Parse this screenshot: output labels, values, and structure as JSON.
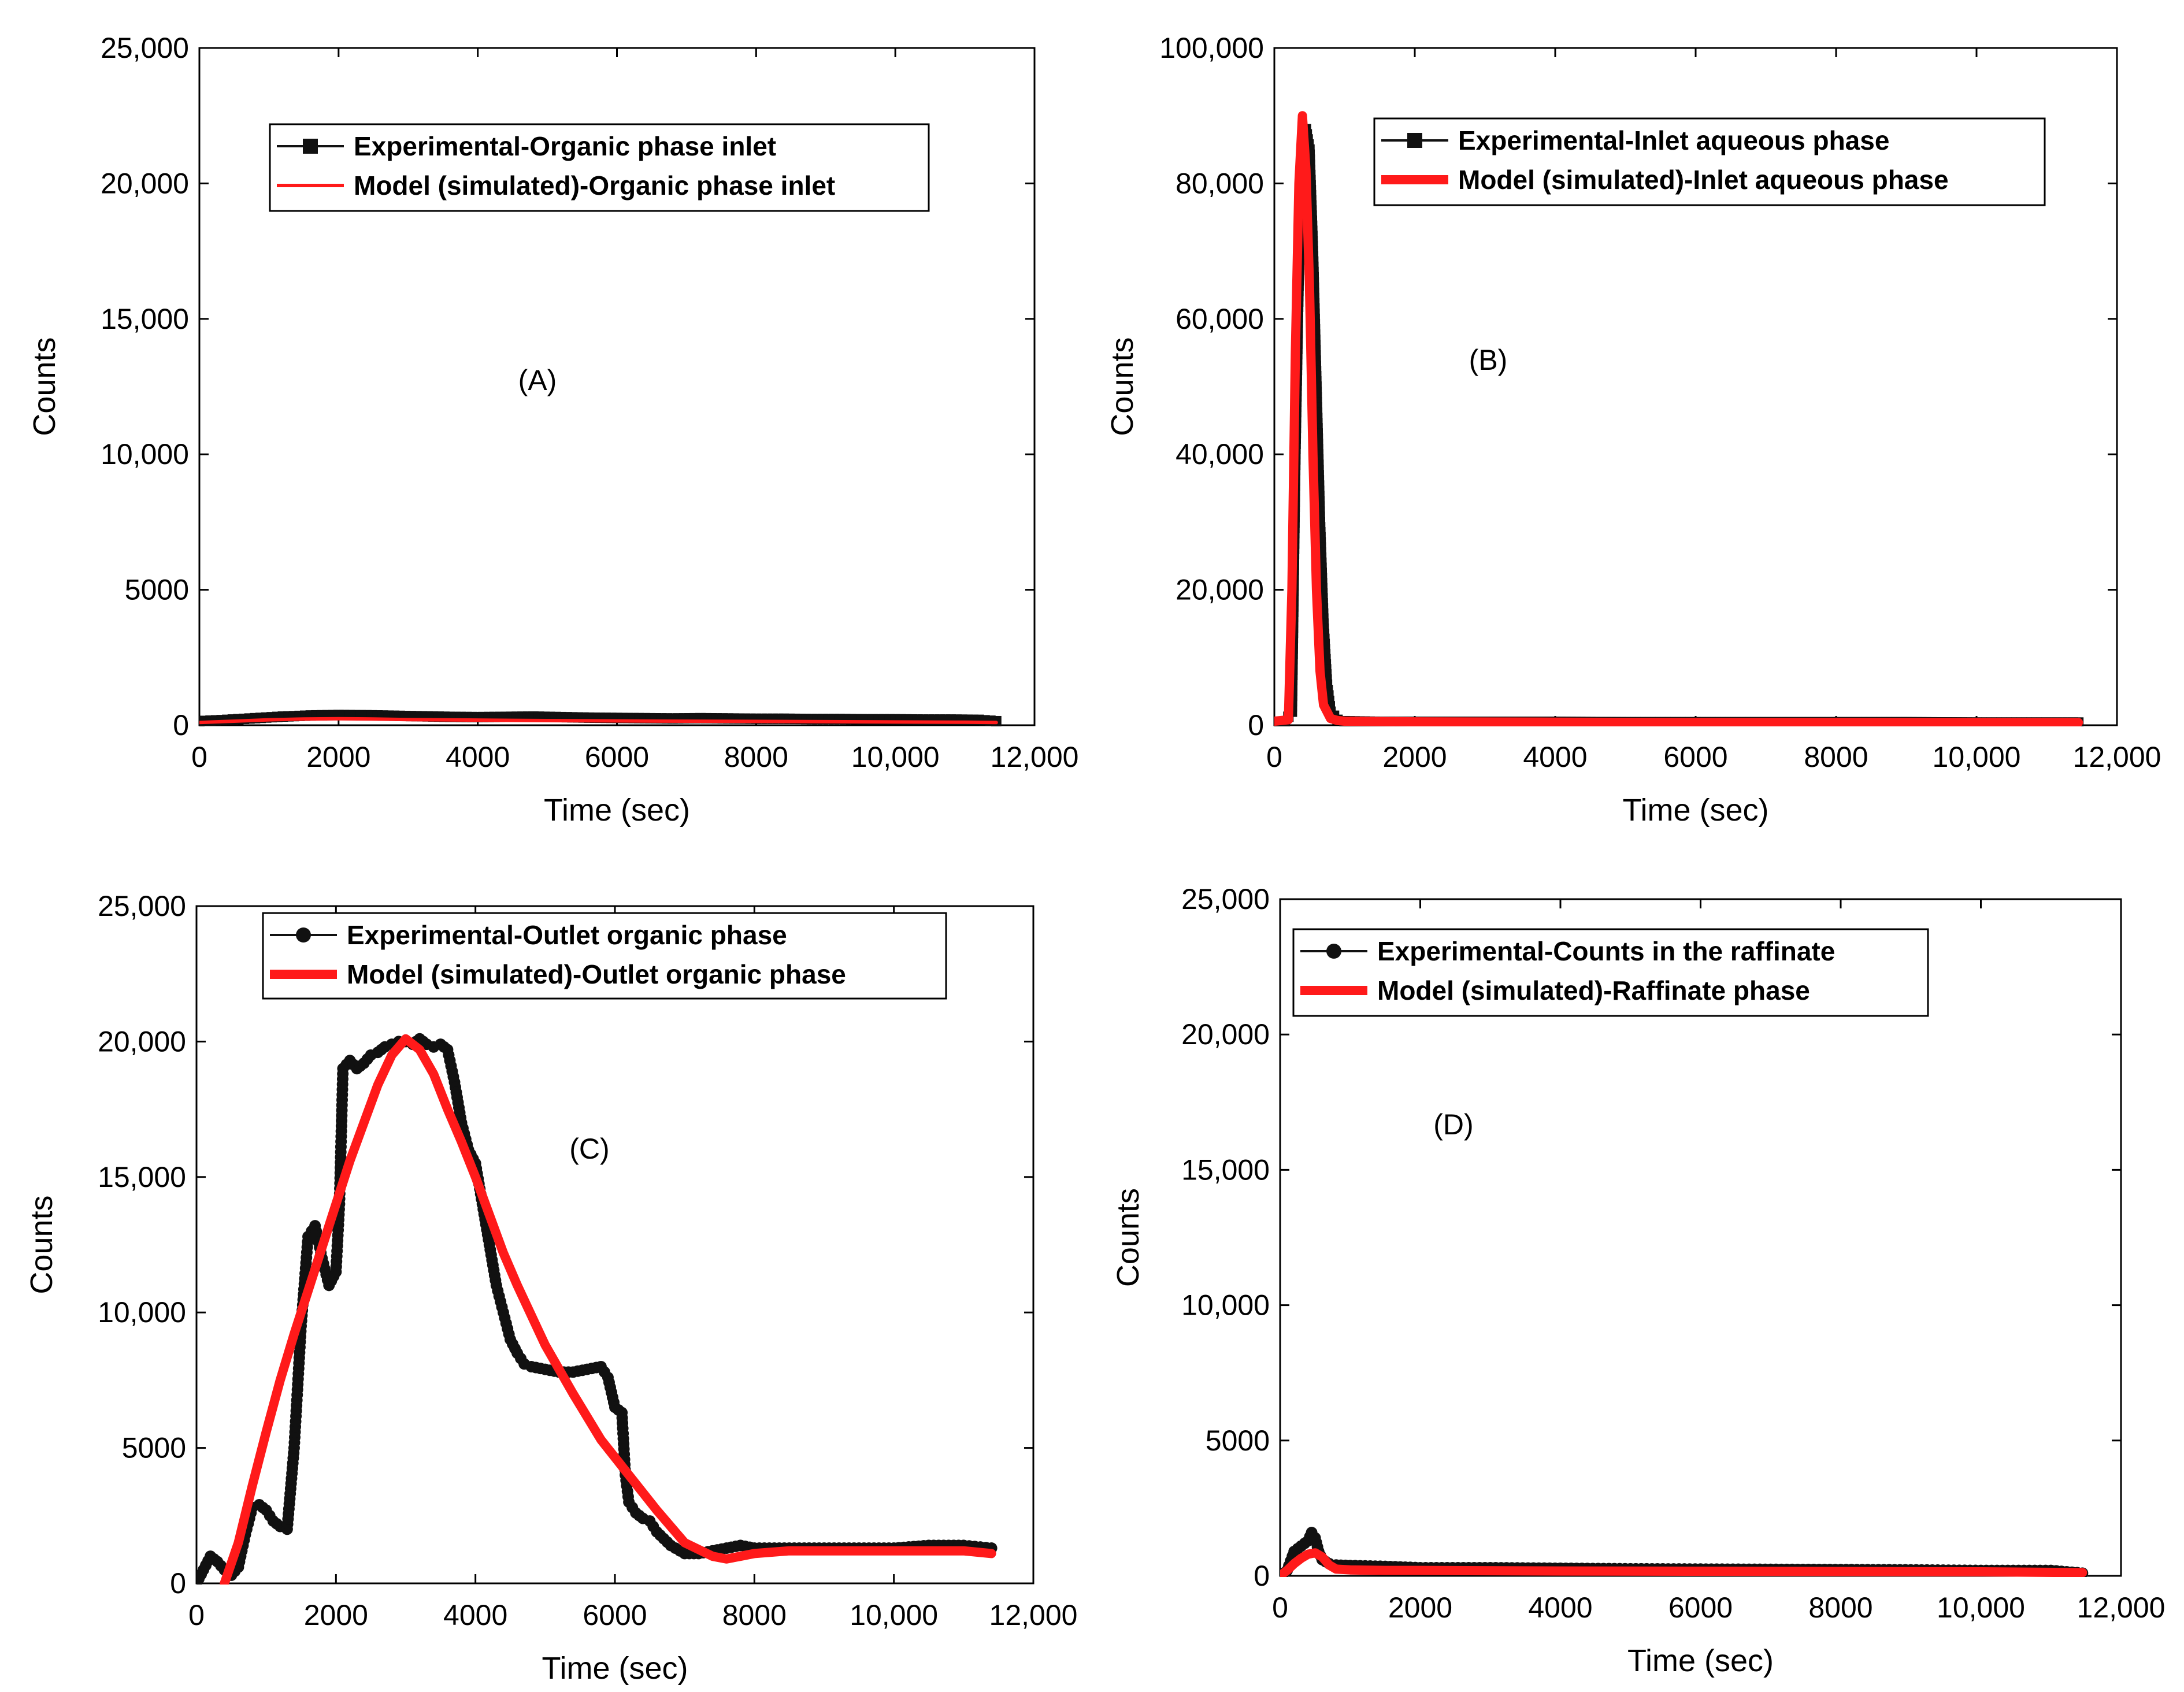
{
  "colors": {
    "experimental": "#111111",
    "model": "#ff1a1a",
    "axis": "#000000",
    "background": "#ffffff"
  },
  "chart_data": [
    {
      "id": "A",
      "type": "line",
      "panel_label": "(A)",
      "xlabel": "Time (sec)",
      "ylabel": "Counts",
      "xlim": [
        0,
        12000
      ],
      "ylim": [
        0,
        25000
      ],
      "x_ticks": [
        "0",
        "2000",
        "4000",
        "6000",
        "8000",
        "10,000",
        "12,000"
      ],
      "y_ticks": [
        "0",
        "5000",
        "10,000",
        "15,000",
        "20,000",
        "25,000"
      ],
      "legend_position": "top-center",
      "series": [
        {
          "name": "Experimental-Organic phase inlet",
          "kind": "experimental",
          "marker": "square",
          "x": [
            0,
            400,
            800,
            1200,
            1600,
            2000,
            2400,
            2800,
            3200,
            3600,
            4000,
            4400,
            4800,
            5200,
            5600,
            6000,
            6400,
            6800,
            7200,
            7600,
            8000,
            8400,
            8800,
            9200,
            9600,
            10000,
            10400,
            10800,
            11200,
            11450
          ],
          "y": [
            150,
            200,
            260,
            320,
            360,
            380,
            370,
            350,
            330,
            310,
            300,
            310,
            320,
            300,
            280,
            270,
            260,
            250,
            260,
            250,
            240,
            240,
            230,
            230,
            220,
            220,
            210,
            210,
            200,
            150
          ]
        },
        {
          "name": "Model (simulated)-Organic phase inlet",
          "kind": "model",
          "line_weight": "thin",
          "x": [
            0,
            500,
            1000,
            1500,
            2000,
            2500,
            3000,
            4000,
            5000,
            6000,
            7000,
            8000,
            9000,
            10000,
            11000,
            11450
          ],
          "y": [
            100,
            150,
            200,
            230,
            240,
            230,
            210,
            190,
            170,
            160,
            150,
            140,
            130,
            120,
            110,
            100
          ]
        }
      ]
    },
    {
      "id": "B",
      "type": "line",
      "panel_label": "(B)",
      "xlabel": "Time (sec)",
      "ylabel": "Counts",
      "xlim": [
        0,
        12000
      ],
      "ylim": [
        0,
        100000
      ],
      "x_ticks": [
        "0",
        "2000",
        "4000",
        "6000",
        "8000",
        "10,000",
        "12,000"
      ],
      "y_ticks": [
        "0",
        "20,000",
        "40,000",
        "60,000",
        "80,000",
        "100,000"
      ],
      "legend_position": "top-right",
      "series": [
        {
          "name": "Experimental-Inlet aqueous phase",
          "kind": "experimental",
          "marker": "square",
          "x": [
            0,
            150,
            250,
            300,
            350,
            400,
            450,
            500,
            550,
            600,
            650,
            700,
            750,
            800,
            900,
            1000,
            1500,
            2000,
            3000,
            4000,
            5000,
            6000,
            7000,
            8000,
            9000,
            10000,
            11000,
            11450
          ],
          "y": [
            500,
            500,
            2000,
            40000,
            68000,
            83000,
            88000,
            85000,
            70000,
            50000,
            30000,
            15000,
            6000,
            2000,
            800,
            600,
            500,
            500,
            500,
            500,
            450,
            450,
            450,
            450,
            450,
            400,
            400,
            400
          ]
        },
        {
          "name": "Model (simulated)-Inlet aqueous phase",
          "kind": "model",
          "line_weight": "thick",
          "x": [
            0,
            200,
            250,
            300,
            350,
            400,
            450,
            500,
            550,
            600,
            650,
            700,
            800,
            900,
            1000,
            1500,
            2000,
            4000,
            6000,
            8000,
            10000,
            11450
          ],
          "y": [
            600,
            800,
            20000,
            55000,
            80000,
            90000,
            82000,
            65000,
            40000,
            20000,
            8000,
            3000,
            1000,
            700,
            600,
            550,
            500,
            450,
            400,
            400,
            400,
            400
          ]
        }
      ]
    },
    {
      "id": "C",
      "type": "line",
      "panel_label": "(C)",
      "xlabel": "Time (sec)",
      "ylabel": "Counts",
      "xlim": [
        0,
        12000
      ],
      "ylim": [
        0,
        25000
      ],
      "x_ticks": [
        "0",
        "2000",
        "4000",
        "6000",
        "8000",
        "10,000",
        "12,000"
      ],
      "y_ticks": [
        "0",
        "5000",
        "10,000",
        "15,000",
        "20,000",
        "25,000"
      ],
      "legend_position": "top-center",
      "series": [
        {
          "name": "Experimental-Outlet organic phase",
          "kind": "experimental",
          "marker": "circle",
          "x": [
            0,
            200,
            300,
            400,
            500,
            600,
            700,
            800,
            900,
            1000,
            1100,
            1200,
            1300,
            1400,
            1500,
            1600,
            1700,
            1800,
            1900,
            2000,
            2050,
            2100,
            2200,
            2300,
            2400,
            2500,
            2600,
            2700,
            2800,
            2900,
            3000,
            3100,
            3200,
            3300,
            3400,
            3500,
            3600,
            3700,
            3800,
            3900,
            4000,
            4100,
            4200,
            4300,
            4400,
            4500,
            4600,
            4700,
            4800,
            5000,
            5200,
            5400,
            5600,
            5800,
            5900,
            6000,
            6100,
            6150,
            6200,
            6300,
            6400,
            6500,
            6600,
            6800,
            7000,
            7200,
            7400,
            7600,
            7800,
            8000,
            8500,
            9000,
            9500,
            10000,
            10500,
            11000,
            11400
          ],
          "y": [
            0,
            1000,
            800,
            500,
            300,
            600,
            1800,
            2800,
            2900,
            2700,
            2300,
            2100,
            2000,
            5000,
            9500,
            12800,
            13200,
            12000,
            11000,
            11500,
            14000,
            19000,
            19300,
            19000,
            19200,
            19500,
            19600,
            19800,
            19900,
            20000,
            20000,
            19900,
            20100,
            19900,
            19800,
            19900,
            19700,
            18500,
            17000,
            16000,
            15500,
            14000,
            12500,
            11000,
            10000,
            9000,
            8500,
            8100,
            8000,
            7900,
            7800,
            7800,
            7900,
            8000,
            7600,
            6500,
            6300,
            4000,
            3000,
            2600,
            2400,
            2300,
            1900,
            1400,
            1100,
            1100,
            1200,
            1300,
            1400,
            1300,
            1300,
            1300,
            1300,
            1300,
            1400,
            1400,
            1300
          ]
        },
        {
          "name": "Model (simulated)-Outlet organic phase",
          "kind": "model",
          "line_weight": "thick",
          "x": [
            400,
            600,
            800,
            1000,
            1200,
            1400,
            1600,
            1800,
            2000,
            2200,
            2400,
            2600,
            2800,
            3000,
            3200,
            3400,
            3600,
            3800,
            4000,
            4200,
            4400,
            4600,
            4800,
            5000,
            5400,
            5800,
            6200,
            6600,
            7000,
            7400,
            7600,
            7800,
            8000,
            8500,
            9000,
            10000,
            11000,
            11400
          ],
          "y": [
            0,
            1500,
            3600,
            5600,
            7500,
            9200,
            10800,
            12400,
            14000,
            15600,
            17000,
            18400,
            19500,
            20100,
            19700,
            18800,
            17500,
            16300,
            15000,
            13600,
            12200,
            11000,
            9900,
            8800,
            7000,
            5300,
            4000,
            2700,
            1500,
            1000,
            900,
            1000,
            1100,
            1200,
            1200,
            1200,
            1200,
            1100
          ]
        }
      ]
    },
    {
      "id": "D",
      "type": "line",
      "panel_label": "(D)",
      "xlabel": "Time (sec)",
      "ylabel": "Counts",
      "xlim": [
        0,
        12000
      ],
      "ylim": [
        0,
        25000
      ],
      "x_ticks": [
        "0",
        "2000",
        "4000",
        "6000",
        "8000",
        "10,000",
        "12,000"
      ],
      "y_ticks": [
        "0",
        "5000",
        "10,000",
        "15,000",
        "20,000",
        "25,000"
      ],
      "legend_position": "top-right",
      "series": [
        {
          "name": "Experimental-Counts in the raffinate",
          "kind": "experimental",
          "marker": "circle",
          "x": [
            0,
            100,
            200,
            300,
            400,
            450,
            500,
            550,
            600,
            700,
            800,
            1000,
            1500,
            2000,
            3000,
            4000,
            5000,
            6000,
            7000,
            8000,
            9000,
            10000,
            11000,
            11450
          ],
          "y": [
            0,
            200,
            900,
            1100,
            1300,
            1600,
            1400,
            900,
            600,
            450,
            400,
            380,
            350,
            300,
            300,
            280,
            260,
            250,
            240,
            230,
            220,
            200,
            200,
            100
          ]
        },
        {
          "name": "Model (simulated)-Raffinate phase",
          "kind": "model",
          "line_weight": "thick",
          "x": [
            0,
            100,
            200,
            300,
            400,
            500,
            600,
            700,
            800,
            1000,
            1500,
            2000,
            4000,
            6000,
            8000,
            10000,
            11450
          ],
          "y": [
            0,
            200,
            450,
            650,
            800,
            850,
            700,
            400,
            250,
            220,
            200,
            200,
            180,
            170,
            160,
            150,
            120
          ]
        }
      ]
    }
  ]
}
